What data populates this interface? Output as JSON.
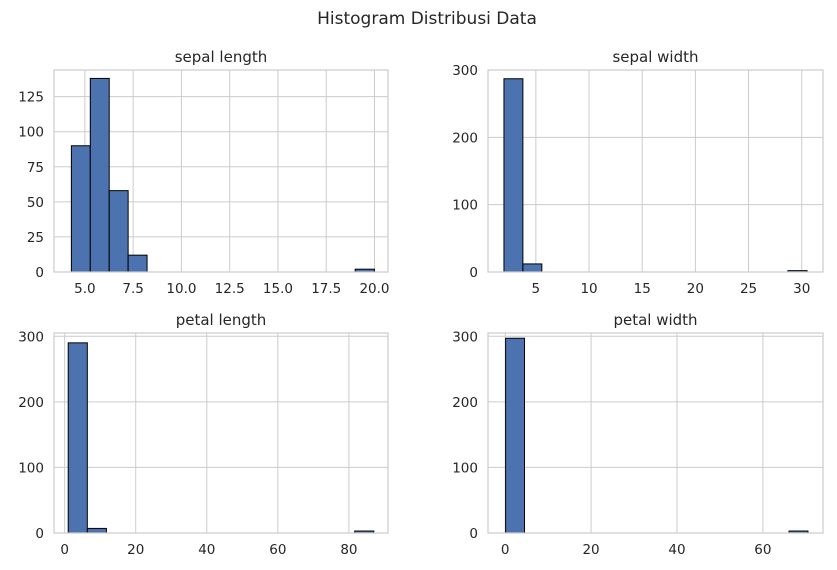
{
  "figure": {
    "title": "Histogram Distribusi Data",
    "bar_color": "#4c72b0",
    "edge_color": "#000000",
    "grid_color": "#cccccc",
    "spine_color": "#cccccc"
  },
  "chart_data": [
    {
      "type": "bar",
      "title": "sepal length",
      "xlabel": "",
      "ylabel": "",
      "grid": true,
      "xlim": [
        3.4,
        20.7
      ],
      "ylim": [
        0,
        144
      ],
      "xticks": [
        5.0,
        7.5,
        10.0,
        12.5,
        15.0,
        17.5,
        20.0
      ],
      "xtick_labels": [
        "5.0",
        "7.5",
        "10.0",
        "12.5",
        "15.0",
        "17.5",
        "20.0"
      ],
      "yticks": [
        0,
        25,
        50,
        75,
        100,
        125
      ],
      "ytick_labels": [
        "0",
        "25",
        "50",
        "75",
        "100",
        "125"
      ],
      "bin_edges": [
        4.3,
        5.28,
        6.26,
        7.24,
        8.22,
        9.2,
        10.18,
        11.16,
        12.14,
        13.12,
        14.1,
        15.08,
        16.06,
        17.04,
        18.02,
        19.0,
        20.0
      ],
      "counts": [
        90,
        138,
        58,
        12,
        0,
        0,
        0,
        0,
        0,
        0,
        0,
        0,
        0,
        0,
        0,
        2
      ]
    },
    {
      "type": "bar",
      "title": "sepal width",
      "xlabel": "",
      "ylabel": "",
      "grid": true,
      "xlim": [
        0.5,
        32.0
      ],
      "ylim": [
        0,
        300
      ],
      "xticks": [
        5,
        10,
        15,
        20,
        25,
        30
      ],
      "xtick_labels": [
        "5",
        "10",
        "15",
        "20",
        "25",
        "30"
      ],
      "yticks": [
        0,
        100,
        200,
        300
      ],
      "ytick_labels": [
        "0",
        "100",
        "200",
        "300"
      ],
      "bin_edges": [
        2.0,
        3.78,
        5.56,
        7.34,
        9.12,
        10.9,
        12.68,
        14.46,
        16.24,
        18.02,
        19.8,
        21.58,
        23.36,
        25.14,
        26.92,
        28.7,
        30.5
      ],
      "counts": [
        287,
        12,
        0,
        0,
        0,
        0,
        0,
        0,
        0,
        0,
        0,
        0,
        0,
        0,
        0,
        2
      ]
    },
    {
      "type": "bar",
      "title": "petal length",
      "xlabel": "",
      "ylabel": "",
      "grid": true,
      "xlim": [
        -3.0,
        91.0
      ],
      "ylim": [
        0,
        305
      ],
      "xticks": [
        0,
        20,
        40,
        60,
        80
      ],
      "xtick_labels": [
        "0",
        "20",
        "40",
        "60",
        "80"
      ],
      "yticks": [
        0,
        100,
        200,
        300
      ],
      "ytick_labels": [
        "0",
        "100",
        "200",
        "300"
      ],
      "bin_edges": [
        1.0,
        6.38,
        11.75,
        17.13,
        22.5,
        27.88,
        33.25,
        38.63,
        44.0,
        49.38,
        54.75,
        60.13,
        65.5,
        70.88,
        76.25,
        81.63,
        87.0
      ],
      "counts": [
        290,
        7,
        0,
        0,
        0,
        0,
        0,
        0,
        0,
        0,
        0,
        0,
        0,
        0,
        0,
        3
      ]
    },
    {
      "type": "bar",
      "title": "petal width",
      "xlabel": "",
      "ylabel": "",
      "grid": true,
      "xlim": [
        -4.0,
        74.0
      ],
      "ylim": [
        0,
        305
      ],
      "xticks": [
        0,
        20,
        40,
        60
      ],
      "xtick_labels": [
        "0",
        "20",
        "40",
        "60"
      ],
      "yticks": [
        0,
        100,
        200,
        300
      ],
      "ytick_labels": [
        "0",
        "100",
        "200",
        "300"
      ],
      "bin_edges": [
        0.1,
        4.5,
        8.9,
        13.3,
        17.7,
        22.1,
        26.5,
        30.9,
        35.3,
        39.7,
        44.1,
        48.5,
        52.9,
        57.3,
        61.7,
        66.1,
        70.5
      ],
      "counts": [
        297,
        0,
        0,
        0,
        0,
        0,
        0,
        0,
        0,
        0,
        0,
        0,
        0,
        0,
        0,
        3
      ]
    }
  ]
}
